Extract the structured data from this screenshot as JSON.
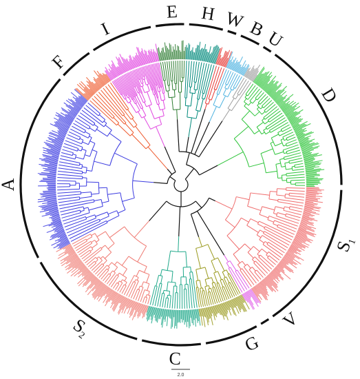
{
  "figure": {
    "labels": [
      {
        "id": "E",
        "text": "E",
        "sub": ""
      },
      {
        "id": "H",
        "text": "H",
        "sub": ""
      },
      {
        "id": "W",
        "text": "W",
        "sub": ""
      },
      {
        "id": "B",
        "text": "B",
        "sub": ""
      },
      {
        "id": "U",
        "text": "U",
        "sub": ""
      },
      {
        "id": "D",
        "text": "D",
        "sub": ""
      },
      {
        "id": "S1",
        "text": "S",
        "sub": "1"
      },
      {
        "id": "V",
        "text": "V",
        "sub": ""
      },
      {
        "id": "G",
        "text": "G",
        "sub": ""
      },
      {
        "id": "C",
        "text": "C",
        "sub": ""
      },
      {
        "id": "S2",
        "text": "S",
        "sub": "2"
      },
      {
        "id": "A",
        "text": "A",
        "sub": ""
      },
      {
        "id": "F",
        "text": "F",
        "sub": ""
      },
      {
        "id": "I",
        "text": "I",
        "sub": ""
      }
    ],
    "clades": [
      {
        "id": "E",
        "color": "#2e7d32",
        "leaves": 12
      },
      {
        "id": "H",
        "color": "#00897b",
        "leaves": 12
      },
      {
        "id": "W",
        "color": "#e53935",
        "leaves": 4
      },
      {
        "id": "B",
        "color": "#4fb3e0",
        "leaves": 8
      },
      {
        "id": "U",
        "color": "#9e9e9e",
        "leaves": 4
      },
      {
        "id": "D",
        "color": "#2ec43a",
        "leaves": 44
      },
      {
        "id": "S1",
        "color": "#ef6b6b",
        "leaves": 40
      },
      {
        "id": "V",
        "color": "#e060e8",
        "leaves": 4
      },
      {
        "id": "G",
        "color": "#9a9a1e",
        "leaves": 22
      },
      {
        "id": "C",
        "color": "#1fa88a",
        "leaves": 20
      },
      {
        "id": "S2",
        "color": "#ef7a72",
        "leaves": 40
      },
      {
        "id": "A",
        "color": "#3b3be0",
        "leaves": 48
      },
      {
        "id": "F",
        "color": "#ee5a2e",
        "leaves": 10
      },
      {
        "id": "I",
        "color": "#e044e0",
        "leaves": 38
      }
    ],
    "backbone_color": "#111111",
    "scale_bar": {
      "text": "2.0"
    }
  }
}
